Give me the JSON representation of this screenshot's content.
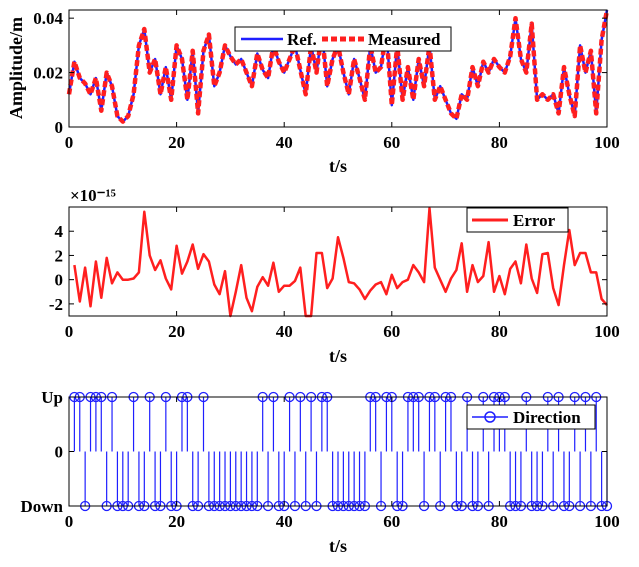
{
  "chart_data": [
    {
      "type": "line",
      "xlabel": "t/s",
      "ylabel": "Amplitude/m",
      "xlim": [
        0,
        100
      ],
      "ylim": [
        0,
        0.043
      ],
      "xticks": [
        "0",
        "20",
        "40",
        "60",
        "80",
        "100"
      ],
      "yticks": [
        "0",
        "0.02",
        "0.04"
      ],
      "legend": [
        "Ref.",
        "Measured"
      ],
      "series": [
        {
          "name": "Ref.",
          "color": "#1f1fff",
          "style": "solid",
          "x": [
            0,
            1,
            2,
            3,
            4,
            5,
            6,
            7,
            8,
            9,
            10,
            11,
            12,
            13,
            14,
            15,
            16,
            17,
            18,
            19,
            20,
            21,
            22,
            23,
            24,
            25,
            26,
            27,
            28,
            29,
            30,
            31,
            32,
            33,
            34,
            35,
            36,
            37,
            38,
            39,
            40,
            41,
            42,
            43,
            44,
            45,
            46,
            47,
            48,
            49,
            50,
            51,
            52,
            53,
            54,
            55,
            56,
            57,
            58,
            59,
            60,
            61,
            62,
            63,
            64,
            65,
            66,
            67,
            68,
            69,
            70,
            71,
            72,
            73,
            74,
            75,
            76,
            77,
            78,
            79,
            80,
            81,
            82,
            83,
            84,
            85,
            86,
            87,
            88,
            89,
            90,
            91,
            92,
            93,
            94,
            95,
            96,
            97,
            98,
            99,
            100
          ],
          "values": [
            0.012,
            0.024,
            0.018,
            0.016,
            0.012,
            0.018,
            0.006,
            0.02,
            0.015,
            0.004,
            0.002,
            0.004,
            0.012,
            0.03,
            0.036,
            0.02,
            0.025,
            0.012,
            0.022,
            0.01,
            0.03,
            0.025,
            0.01,
            0.028,
            0.005,
            0.028,
            0.034,
            0.015,
            0.02,
            0.03,
            0.026,
            0.023,
            0.025,
            0.02,
            0.015,
            0.027,
            0.021,
            0.018,
            0.03,
            0.024,
            0.02,
            0.025,
            0.03,
            0.021,
            0.012,
            0.03,
            0.02,
            0.035,
            0.015,
            0.025,
            0.03,
            0.02,
            0.012,
            0.025,
            0.018,
            0.01,
            0.03,
            0.02,
            0.022,
            0.035,
            0.008,
            0.03,
            0.01,
            0.022,
            0.01,
            0.025,
            0.015,
            0.03,
            0.01,
            0.015,
            0.01,
            0.005,
            0.003,
            0.012,
            0.01,
            0.022,
            0.015,
            0.024,
            0.02,
            0.025,
            0.022,
            0.02,
            0.026,
            0.04,
            0.025,
            0.02,
            0.038,
            0.01,
            0.012,
            0.01,
            0.012,
            0.005,
            0.022,
            0.012,
            0.004,
            0.03,
            0.02,
            0.028,
            0.005,
            0.032,
            0.043
          ]
        },
        {
          "name": "Measured",
          "color": "#ff1f1f",
          "style": "dashed",
          "x": [
            0,
            1,
            2,
            3,
            4,
            5,
            6,
            7,
            8,
            9,
            10,
            11,
            12,
            13,
            14,
            15,
            16,
            17,
            18,
            19,
            20,
            21,
            22,
            23,
            24,
            25,
            26,
            27,
            28,
            29,
            30,
            31,
            32,
            33,
            34,
            35,
            36,
            37,
            38,
            39,
            40,
            41,
            42,
            43,
            44,
            45,
            46,
            47,
            48,
            49,
            50,
            51,
            52,
            53,
            54,
            55,
            56,
            57,
            58,
            59,
            60,
            61,
            62,
            63,
            64,
            65,
            66,
            67,
            68,
            69,
            70,
            71,
            72,
            73,
            74,
            75,
            76,
            77,
            78,
            79,
            80,
            81,
            82,
            83,
            84,
            85,
            86,
            87,
            88,
            89,
            90,
            91,
            92,
            93,
            94,
            95,
            96,
            97,
            98,
            99,
            100
          ],
          "values": [
            0.012,
            0.024,
            0.018,
            0.016,
            0.012,
            0.018,
            0.006,
            0.02,
            0.015,
            0.004,
            0.002,
            0.004,
            0.012,
            0.03,
            0.036,
            0.02,
            0.025,
            0.012,
            0.022,
            0.01,
            0.03,
            0.025,
            0.01,
            0.028,
            0.005,
            0.028,
            0.034,
            0.015,
            0.02,
            0.03,
            0.026,
            0.023,
            0.025,
            0.02,
            0.015,
            0.027,
            0.021,
            0.018,
            0.03,
            0.024,
            0.02,
            0.025,
            0.03,
            0.021,
            0.012,
            0.03,
            0.02,
            0.035,
            0.015,
            0.025,
            0.03,
            0.02,
            0.012,
            0.025,
            0.018,
            0.01,
            0.03,
            0.02,
            0.022,
            0.035,
            0.008,
            0.03,
            0.01,
            0.022,
            0.01,
            0.025,
            0.015,
            0.03,
            0.01,
            0.015,
            0.01,
            0.005,
            0.003,
            0.012,
            0.01,
            0.022,
            0.015,
            0.024,
            0.02,
            0.025,
            0.022,
            0.02,
            0.026,
            0.04,
            0.025,
            0.02,
            0.038,
            0.01,
            0.012,
            0.01,
            0.012,
            0.005,
            0.022,
            0.012,
            0.004,
            0.03,
            0.02,
            0.028,
            0.005,
            0.032,
            0.043
          ]
        }
      ]
    },
    {
      "type": "line",
      "xlabel": "t/s",
      "ylabel": "",
      "exponent": "×10⁻¹⁵",
      "xlim": [
        0,
        100
      ],
      "ylim": [
        -3,
        6
      ],
      "xticks": [
        "0",
        "20",
        "40",
        "60",
        "80",
        "100"
      ],
      "yticks": [
        "-2",
        "0",
        "2",
        "4"
      ],
      "legend": [
        "Error"
      ],
      "series": [
        {
          "name": "Error",
          "color": "#ff1f1f",
          "style": "solid",
          "x": [
            1,
            2,
            3,
            4,
            5,
            6,
            7,
            8,
            9,
            10,
            11,
            12,
            13,
            14,
            15,
            16,
            17,
            18,
            19,
            20,
            21,
            22,
            23,
            24,
            25,
            26,
            27,
            28,
            29,
            30,
            31,
            32,
            33,
            34,
            35,
            36,
            37,
            38,
            39,
            40,
            41,
            42,
            43,
            44,
            45,
            46,
            47,
            48,
            49,
            50,
            51,
            52,
            53,
            54,
            55,
            56,
            57,
            58,
            59,
            60,
            61,
            62,
            63,
            64,
            65,
            66,
            67,
            68,
            69,
            70,
            71,
            72,
            73,
            74,
            75,
            76,
            77,
            78,
            79,
            80,
            81,
            82,
            83,
            84,
            85,
            86,
            87,
            88,
            89,
            90,
            91,
            92,
            93,
            94,
            95,
            96,
            97,
            98,
            99,
            100
          ],
          "values": [
            1.2,
            -1.8,
            1.0,
            -2.2,
            1.5,
            -1.5,
            1.8,
            -0.3,
            0.6,
            0.0,
            0.0,
            0.1,
            0.6,
            5.6,
            2.0,
            0.8,
            1.6,
            0.1,
            -0.8,
            2.8,
            0.5,
            1.5,
            2.9,
            0.9,
            2.1,
            1.5,
            -0.4,
            -1.2,
            0.7,
            -3.0,
            -1.0,
            1.2,
            -1.5,
            -2.6,
            -0.6,
            0.2,
            -0.5,
            1.4,
            -1.0,
            -0.5,
            -0.5,
            -0.1,
            1.0,
            -3.0,
            -3.0,
            2.2,
            2.2,
            -0.7,
            0.1,
            3.5,
            1.8,
            -0.2,
            -0.3,
            -0.8,
            -1.6,
            -0.9,
            -0.4,
            -0.2,
            -1.2,
            0.4,
            -0.7,
            -0.2,
            0.0,
            1.2,
            0.6,
            -0.2,
            5.9,
            1.0,
            0.0,
            -1.0,
            0.1,
            0.8,
            3.0,
            -1.0,
            1.2,
            -0.2,
            0.3,
            3.1,
            -1.0,
            0.3,
            -1.2,
            0.9,
            1.5,
            -0.3,
            2.9,
            0.1,
            -1.1,
            2.1,
            2.2,
            -0.7,
            -2.1,
            1.2,
            4.1,
            1.2,
            2.2,
            2.2,
            0.6,
            0.6,
            -1.6,
            -2.1
          ]
        }
      ]
    },
    {
      "type": "stem",
      "xlabel": "t/s",
      "ylabel": "",
      "xlim": [
        0,
        100
      ],
      "ylim": [
        -1,
        1
      ],
      "xticks": [
        "0",
        "20",
        "40",
        "60",
        "80",
        "100"
      ],
      "yticks": [
        "Down",
        "0",
        "Up"
      ],
      "legend": [
        "Direction"
      ],
      "series": [
        {
          "name": "Direction",
          "color": "#1f1fff",
          "x": [
            1,
            2,
            3,
            4,
            5,
            6,
            7,
            8,
            9,
            10,
            11,
            12,
            13,
            14,
            15,
            16,
            17,
            18,
            19,
            20,
            21,
            22,
            23,
            24,
            25,
            26,
            27,
            28,
            29,
            30,
            31,
            32,
            33,
            34,
            35,
            36,
            37,
            38,
            39,
            40,
            41,
            42,
            43,
            44,
            45,
            46,
            47,
            48,
            49,
            50,
            51,
            52,
            53,
            54,
            55,
            56,
            57,
            58,
            59,
            60,
            61,
            62,
            63,
            64,
            65,
            66,
            67,
            68,
            69,
            70,
            71,
            72,
            73,
            74,
            75,
            76,
            77,
            78,
            79,
            80,
            81,
            82,
            83,
            84,
            85,
            86,
            87,
            88,
            89,
            90,
            91,
            92,
            93,
            94,
            95,
            96,
            97,
            98,
            99,
            100
          ],
          "values": [
            1,
            1,
            -1,
            1,
            1,
            1,
            -1,
            1,
            -1,
            -1,
            -1,
            1,
            -1,
            -1,
            1,
            -1,
            -1,
            1,
            -1,
            -1,
            1,
            1,
            -1,
            -1,
            1,
            -1,
            -1,
            -1,
            -1,
            -1,
            -1,
            -1,
            -1,
            -1,
            -1,
            1,
            -1,
            1,
            -1,
            -1,
            1,
            -1,
            1,
            -1,
            1,
            -1,
            1,
            1,
            -1,
            -1,
            -1,
            -1,
            -1,
            -1,
            -1,
            1,
            1,
            -1,
            1,
            1,
            -1,
            -1,
            1,
            1,
            1,
            -1,
            1,
            1,
            -1,
            1,
            1,
            -1,
            -1,
            1,
            -1,
            -1,
            1,
            -1,
            1,
            1,
            1,
            -1,
            -1,
            -1,
            1,
            -1,
            -1,
            -1,
            1,
            -1,
            1,
            -1,
            -1,
            1,
            -1,
            1,
            -1,
            1,
            -1,
            -1
          ]
        }
      ]
    }
  ]
}
